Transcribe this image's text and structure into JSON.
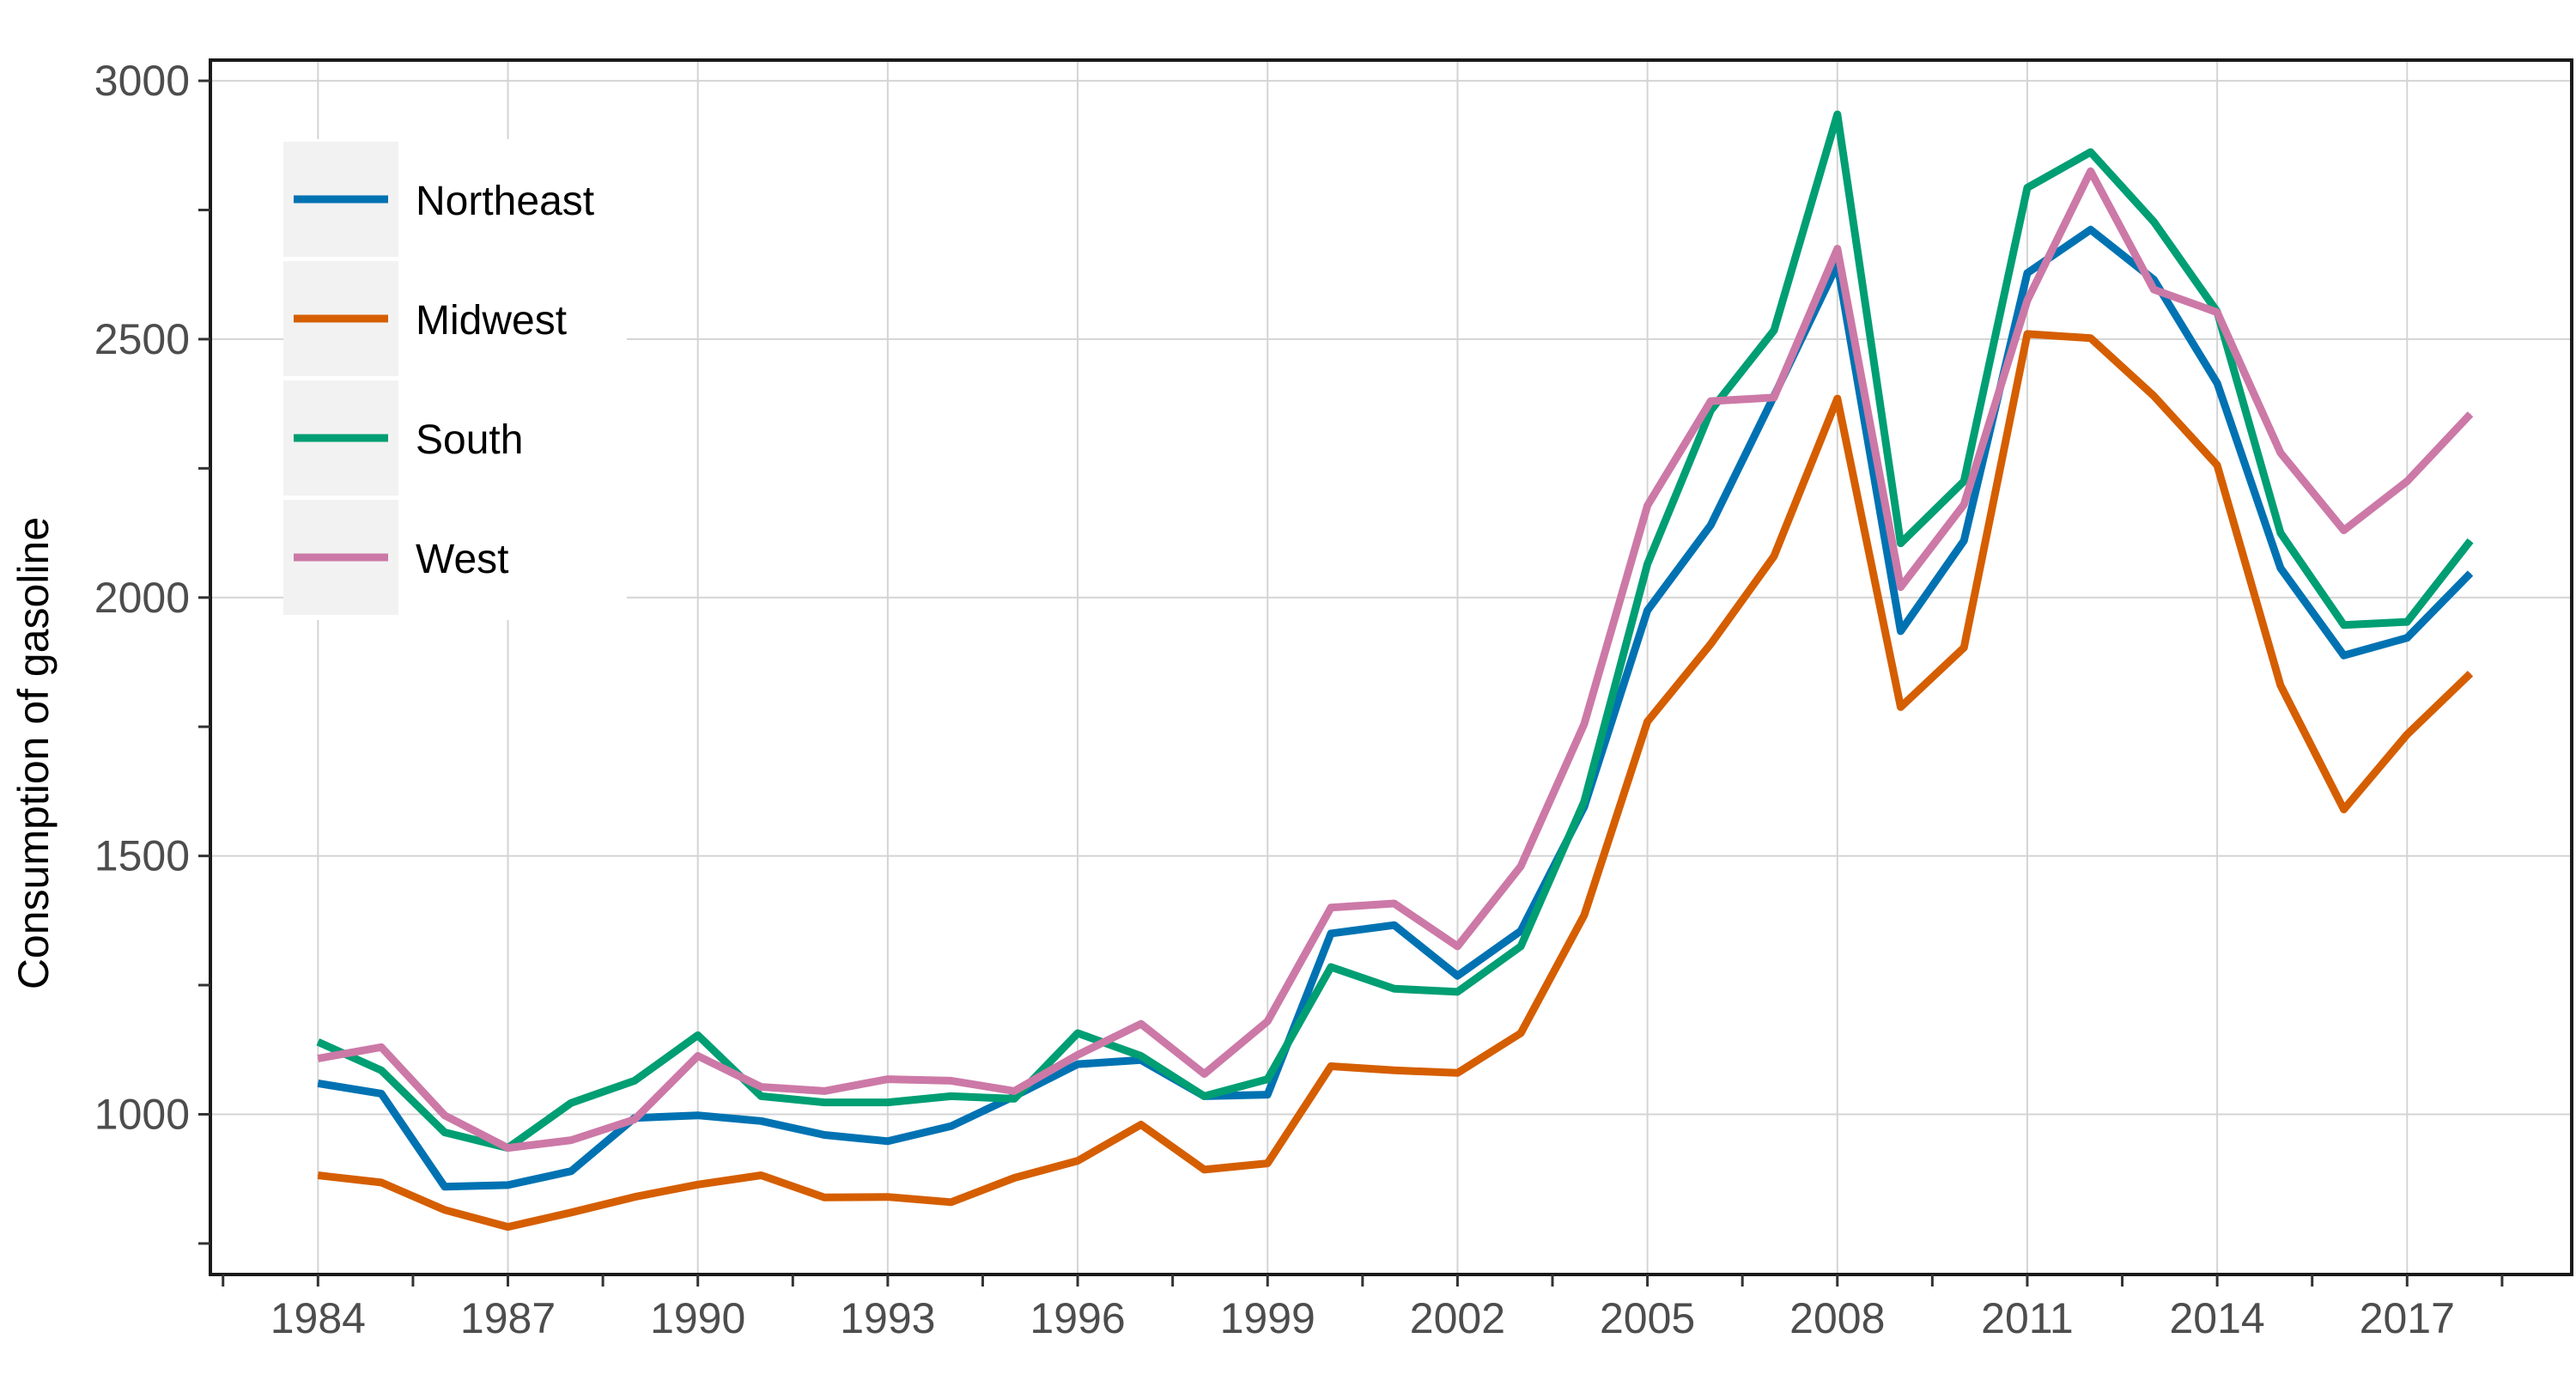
{
  "chart_data": {
    "type": "line",
    "title": "",
    "xlabel": "",
    "ylabel": "Consumption of gasoline",
    "x": [
      1984,
      1985,
      1986,
      1987,
      1988,
      1989,
      1990,
      1991,
      1992,
      1993,
      1994,
      1995,
      1996,
      1997,
      1998,
      1999,
      2000,
      2001,
      2002,
      2003,
      2004,
      2005,
      2006,
      2007,
      2008,
      2009,
      2010,
      2011,
      2012,
      2013,
      2014,
      2015,
      2016,
      2017,
      2018
    ],
    "x_ticks": [
      "1984",
      "1987",
      "1990",
      "1993",
      "1996",
      "1999",
      "2002",
      "2005",
      "2008",
      "2011",
      "2014",
      "2017"
    ],
    "y_ticks": [
      "1000",
      "1500",
      "2000",
      "2500",
      "3000"
    ],
    "xlim": [
      1982.3,
      2019.6
    ],
    "ylim": [
      690,
      3040
    ],
    "grid": true,
    "legend_position": "top-left",
    "series": [
      {
        "name": "Northeast",
        "color": "#0072B2",
        "values": [
          1060,
          1040,
          860,
          863,
          890,
          993,
          998,
          987,
          960,
          948,
          977,
          1035,
          1097,
          1105,
          1035,
          1038,
          1350,
          1366,
          1268,
          1355,
          1595,
          1975,
          2140,
          2390,
          2645,
          1935,
          2110,
          2628,
          2712,
          2615,
          2415,
          2057,
          1888,
          1922,
          2047
        ]
      },
      {
        "name": "Midwest",
        "color": "#D55E00",
        "values": [
          882,
          868,
          815,
          782,
          810,
          840,
          864,
          882,
          839,
          840,
          830,
          877,
          910,
          980,
          893,
          905,
          1093,
          1085,
          1080,
          1157,
          1385,
          1760,
          1910,
          2080,
          2385,
          1788,
          1903,
          2510,
          2502,
          2390,
          2256,
          1830,
          1590,
          1735,
          1853
        ]
      },
      {
        "name": "South",
        "color": "#009E73",
        "values": [
          1140,
          1085,
          965,
          935,
          1022,
          1065,
          1153,
          1035,
          1023,
          1023,
          1035,
          1030,
          1157,
          1113,
          1035,
          1068,
          1285,
          1243,
          1237,
          1325,
          1605,
          2065,
          2362,
          2517,
          2935,
          2105,
          2225,
          2793,
          2862,
          2727,
          2553,
          2125,
          1947,
          1953,
          2110
        ]
      },
      {
        "name": "West",
        "color": "#CC79A7",
        "values": [
          1108,
          1130,
          998,
          935,
          950,
          990,
          1113,
          1053,
          1045,
          1068,
          1065,
          1045,
          1115,
          1175,
          1078,
          1180,
          1400,
          1408,
          1325,
          1480,
          1755,
          2178,
          2380,
          2387,
          2675,
          2020,
          2180,
          2575,
          2825,
          2596,
          2552,
          2280,
          2130,
          2225,
          2355
        ]
      }
    ]
  }
}
